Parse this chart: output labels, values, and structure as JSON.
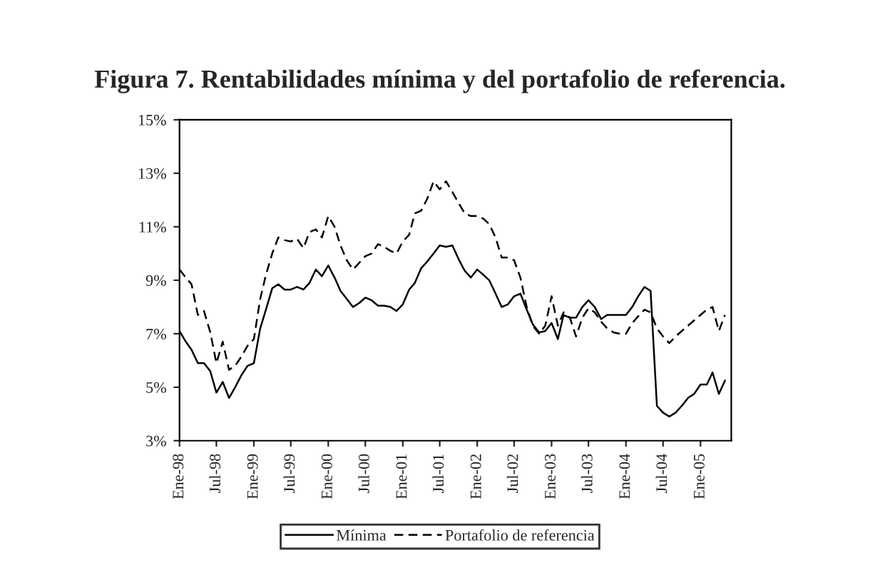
{
  "chart_data": {
    "type": "line",
    "title": "Figura 7. Rentabilidades mínima y del portafolio de referencia.",
    "x": [
      "1998-01",
      "1998-02",
      "1998-03",
      "1998-04",
      "1998-05",
      "1998-06",
      "1998-07",
      "1998-08",
      "1998-09",
      "1998-10",
      "1998-11",
      "1998-12",
      "1999-01",
      "1999-02",
      "1999-03",
      "1999-04",
      "1999-05",
      "1999-06",
      "1999-07",
      "1999-08",
      "1999-09",
      "1999-10",
      "1999-11",
      "1999-12",
      "2000-01",
      "2000-02",
      "2000-03",
      "2000-04",
      "2000-05",
      "2000-06",
      "2000-07",
      "2000-08",
      "2000-09",
      "2000-10",
      "2000-11",
      "2000-12",
      "2001-01",
      "2001-02",
      "2001-03",
      "2001-04",
      "2001-05",
      "2001-06",
      "2001-07",
      "2001-08",
      "2001-09",
      "2001-10",
      "2001-11",
      "2001-12",
      "2002-01",
      "2002-02",
      "2002-03",
      "2002-04",
      "2002-05",
      "2002-06",
      "2002-07",
      "2002-08",
      "2002-09",
      "2002-10",
      "2002-11",
      "2002-12",
      "2003-01",
      "2003-02",
      "2003-03",
      "2003-04",
      "2003-05",
      "2003-06",
      "2003-07",
      "2003-08",
      "2003-09",
      "2003-10",
      "2003-11",
      "2003-12",
      "2004-01",
      "2004-02",
      "2004-03",
      "2004-04",
      "2004-05",
      "2004-06",
      "2004-07",
      "2004-08",
      "2004-09",
      "2004-10",
      "2004-11",
      "2004-12",
      "2005-01",
      "2005-02",
      "2005-03",
      "2005-04",
      "2005-05"
    ],
    "series": [
      {
        "name": "Mínima",
        "color": "#000000",
        "line_style": "solid",
        "values": [
          7.1,
          6.7,
          6.4,
          5.9,
          5.9,
          5.6,
          4.8,
          5.2,
          4.6,
          5.0,
          5.45,
          5.8,
          5.9,
          7.2,
          7.9,
          8.7,
          8.85,
          8.65,
          8.65,
          8.75,
          8.65,
          8.9,
          9.4,
          9.15,
          9.55,
          9.1,
          8.6,
          8.3,
          8.0,
          8.15,
          8.35,
          8.25,
          8.05,
          8.05,
          8.0,
          7.85,
          8.1,
          8.65,
          8.9,
          9.45,
          9.7,
          10.0,
          10.3,
          10.25,
          10.3,
          9.8,
          9.35,
          9.1,
          9.4,
          9.2,
          9.0,
          8.5,
          8.0,
          8.1,
          8.4,
          8.5,
          7.9,
          7.35,
          7.05,
          7.1,
          7.4,
          6.8,
          7.7,
          7.6,
          7.6,
          8.0,
          8.25,
          8.0,
          7.55,
          7.7,
          7.7,
          7.7,
          7.7,
          8.0,
          8.4,
          8.75,
          8.6,
          4.3,
          4.05,
          3.9,
          4.05,
          4.3,
          4.6,
          4.75,
          5.1,
          5.1,
          5.55,
          4.75,
          5.25
        ]
      },
      {
        "name": "Portafolio de referencia",
        "color": "#000000",
        "line_style": "dashed",
        "values": [
          9.4,
          9.1,
          8.85,
          7.7,
          7.85,
          7.05,
          5.9,
          6.7,
          5.65,
          5.8,
          6.15,
          6.55,
          6.8,
          8.3,
          9.2,
          10.0,
          10.6,
          10.5,
          10.45,
          10.55,
          10.2,
          10.8,
          10.9,
          10.6,
          11.4,
          11.0,
          10.3,
          9.75,
          9.4,
          9.65,
          9.9,
          10.0,
          10.35,
          10.25,
          10.1,
          10.0,
          10.45,
          10.7,
          11.5,
          11.6,
          12.05,
          12.7,
          12.4,
          12.7,
          12.3,
          11.9,
          11.5,
          11.4,
          11.4,
          11.3,
          11.1,
          10.6,
          9.85,
          9.85,
          9.75,
          9.1,
          8.0,
          7.3,
          7.0,
          7.3,
          8.4,
          7.3,
          7.8,
          7.6,
          6.9,
          7.6,
          7.95,
          7.8,
          7.45,
          7.2,
          7.05,
          7.0,
          7.0,
          7.4,
          7.65,
          7.9,
          7.8,
          7.2,
          6.9,
          6.65,
          6.9,
          7.1,
          7.3,
          7.5,
          7.7,
          7.9,
          8.0,
          7.1,
          7.7
        ]
      }
    ],
    "xlim": [
      "1998-01",
      "2005-06"
    ],
    "xticks": [
      {
        "value": "1998-01",
        "label": "Ene-98"
      },
      {
        "value": "1998-07",
        "label": "Jul-98"
      },
      {
        "value": "1999-01",
        "label": "Ene-99"
      },
      {
        "value": "1999-07",
        "label": "Jul-99"
      },
      {
        "value": "2000-01",
        "label": "Ene-00"
      },
      {
        "value": "2000-07",
        "label": "Jul-00"
      },
      {
        "value": "2001-01",
        "label": "Ene-01"
      },
      {
        "value": "2001-07",
        "label": "Jul-01"
      },
      {
        "value": "2002-01",
        "label": "Ene-02"
      },
      {
        "value": "2002-07",
        "label": "Jul-02"
      },
      {
        "value": "2003-01",
        "label": "Ene-03"
      },
      {
        "value": "2003-07",
        "label": "Jul-03"
      },
      {
        "value": "2004-01",
        "label": "Ene-04"
      },
      {
        "value": "2004-07",
        "label": "Jul-04"
      },
      {
        "value": "2005-01",
        "label": "Ene-05"
      }
    ],
    "ylim": [
      3,
      15
    ],
    "yticks": [
      {
        "value": 3,
        "label": "3%"
      },
      {
        "value": 5,
        "label": "5%"
      },
      {
        "value": 7,
        "label": "7%"
      },
      {
        "value": 9,
        "label": "9%"
      },
      {
        "value": 11,
        "label": "11%"
      },
      {
        "value": 13,
        "label": "13%"
      },
      {
        "value": 15,
        "label": "15%"
      }
    ],
    "grid": false,
    "legend": "bottom",
    "marker": "none"
  }
}
